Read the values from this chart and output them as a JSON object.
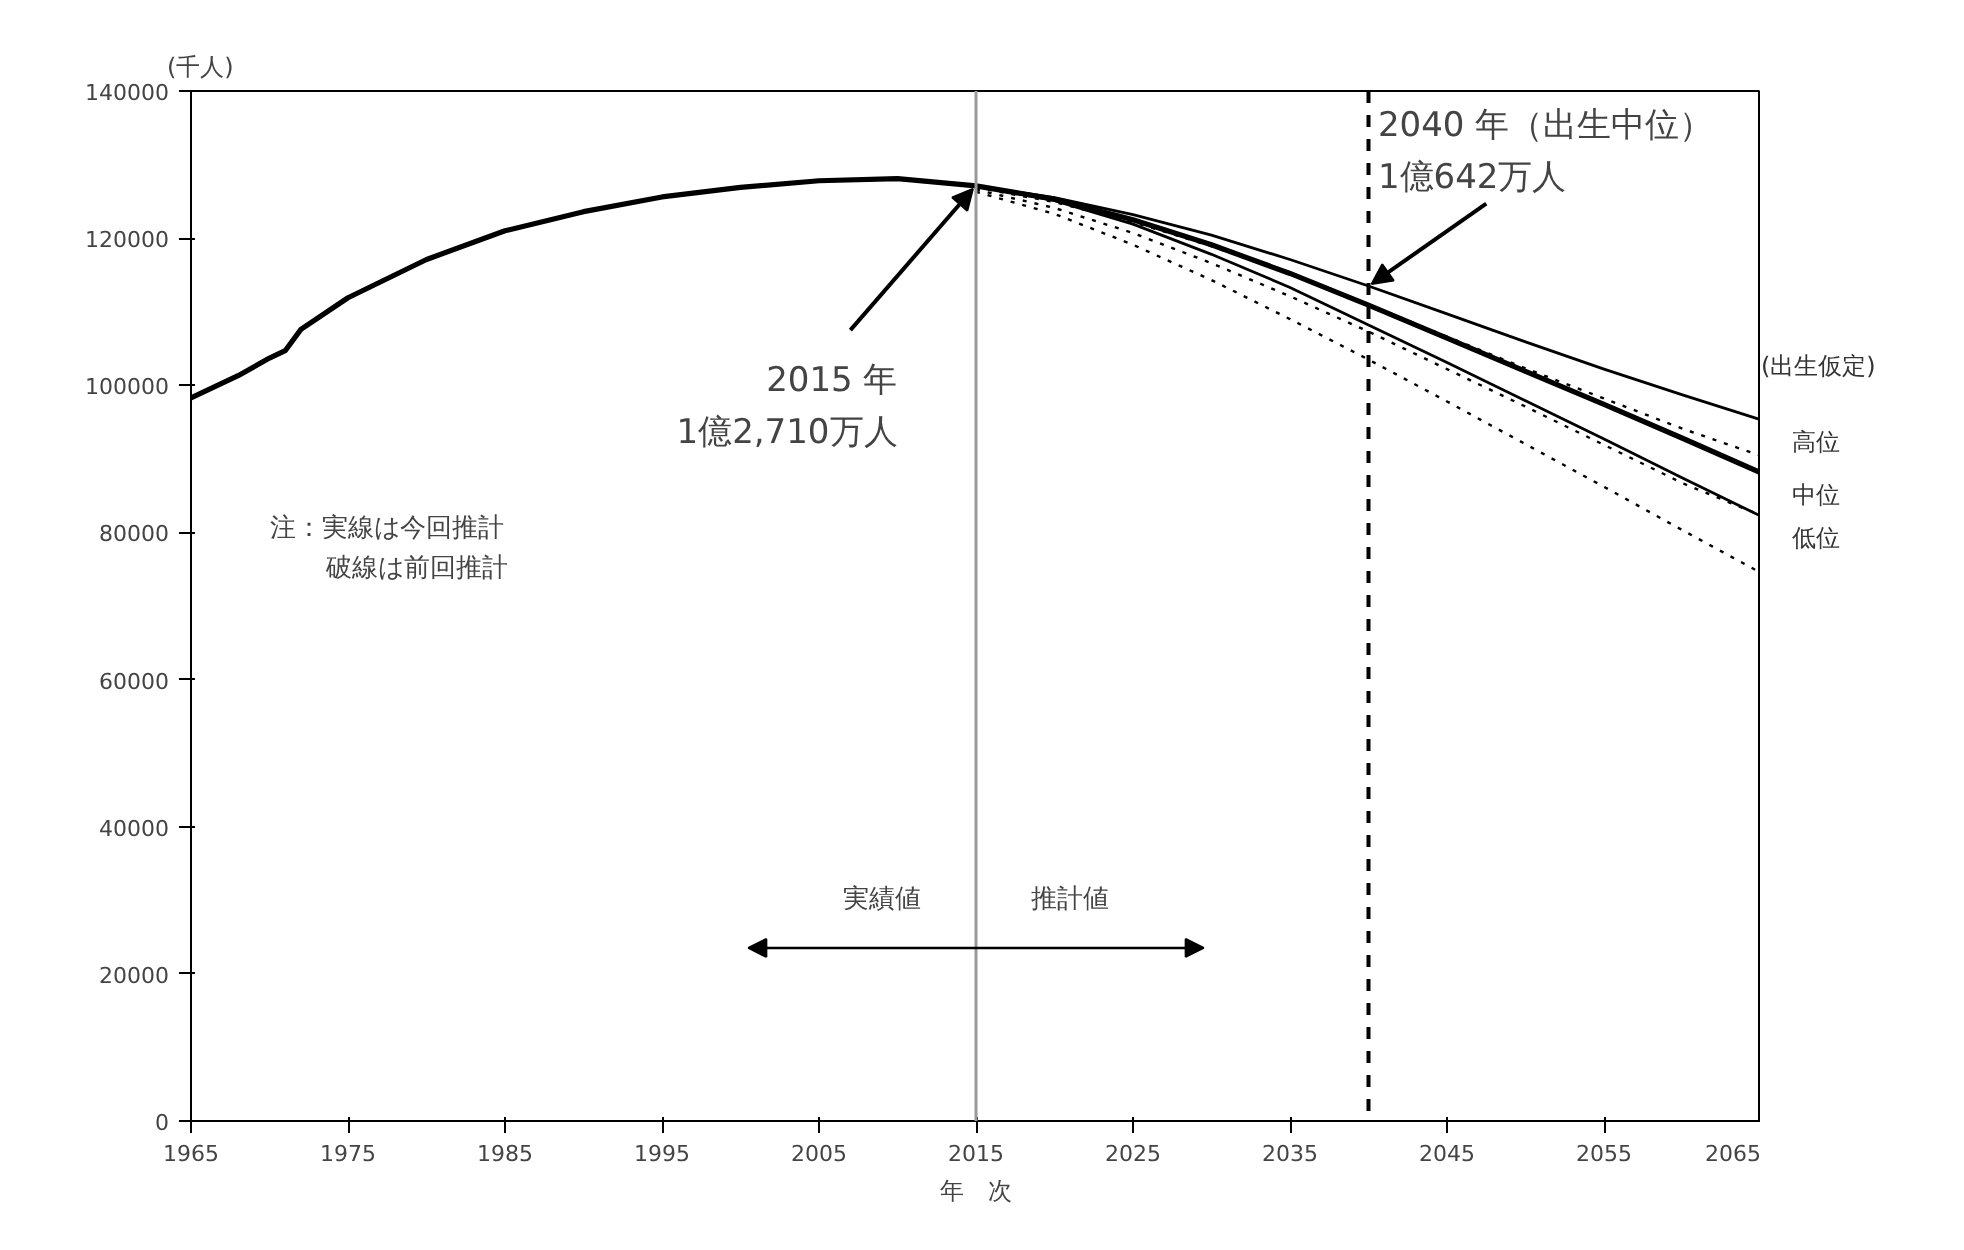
{
  "chart_data": {
    "type": "line",
    "xlabel": "年　次",
    "ylabel": "(千人)",
    "legend_title": "(出生仮定)",
    "xlim": [
      1965,
      2065
    ],
    "ylim": [
      0,
      140000
    ],
    "xticks": [
      1965,
      1975,
      1985,
      1995,
      2005,
      2015,
      2025,
      2035,
      2045,
      2055,
      2065
    ],
    "yticks": [
      0,
      20000,
      40000,
      60000,
      80000,
      100000,
      120000,
      140000
    ],
    "grid": false,
    "legend": false,
    "marker": "none",
    "series": [
      {
        "name": "中位",
        "color": "#000000",
        "line_style": "solid",
        "x": [
          1965,
          1968,
          1970,
          1971,
          1972,
          1975,
          1980,
          1985,
          1990,
          1995,
          2000,
          2005,
          2010,
          2015,
          2020,
          2025,
          2030,
          2035,
          2040,
          2045,
          2050,
          2055,
          2060,
          2065
        ],
        "values": [
          98300,
          101300,
          103700,
          104700,
          107600,
          111900,
          117100,
          121000,
          123600,
          125600,
          126900,
          127800,
          128100,
          127100,
          125300,
          122500,
          119100,
          115200,
          110900,
          106400,
          101900,
          97400,
          92800,
          88100
        ]
      },
      {
        "name": "高位",
        "color": "#000000",
        "line_style": "solid",
        "x": [
          2015,
          2020,
          2025,
          2030,
          2035,
          2040,
          2045,
          2050,
          2055,
          2060,
          2065
        ],
        "values": [
          127100,
          125500,
          123200,
          120400,
          117100,
          113500,
          109700,
          105900,
          102200,
          98700,
          95300
        ]
      },
      {
        "name": "低位",
        "color": "#000000",
        "line_style": "solid",
        "x": [
          2015,
          2020,
          2025,
          2030,
          2035,
          2040,
          2045,
          2050,
          2055,
          2060,
          2065
        ],
        "values": [
          127100,
          125100,
          121900,
          117800,
          113300,
          108200,
          103100,
          97900,
          92700,
          87400,
          82200
        ]
      },
      {
        "color": "#000000",
        "line_style": "dotted",
        "x": [
          2015,
          2020,
          2025,
          2030,
          2035,
          2040,
          2045,
          2050,
          2055,
          2060,
          2065
        ],
        "values": [
          126900,
          124900,
          122200,
          118900,
          115200,
          111000,
          106600,
          102300,
          98200,
          94100,
          90400
        ]
      },
      {
        "color": "#000000",
        "line_style": "dotted",
        "x": [
          2015,
          2020,
          2025,
          2030,
          2035,
          2040,
          2045,
          2050,
          2055,
          2060,
          2065
        ],
        "values": [
          126600,
          124100,
          120700,
          116600,
          112100,
          107300,
          102200,
          97100,
          91900,
          86700,
          82300
        ]
      },
      {
        "color": "#000000",
        "line_style": "dotted",
        "x": [
          2015,
          2020,
          2025,
          2030,
          2035,
          2040,
          2045,
          2050,
          2055,
          2060,
          2065
        ],
        "values": [
          126300,
          123300,
          119100,
          114300,
          109000,
          103500,
          97800,
          92000,
          86200,
          80300,
          74500
        ]
      }
    ],
    "ref_lines": [
      {
        "axis": "x",
        "value": 2015,
        "color": "#999999",
        "line_style": "solid"
      },
      {
        "axis": "x",
        "value": 2040,
        "color": "#000000",
        "line_style": "dashed"
      }
    ],
    "annotations": [
      {
        "text": "2015 年\n1億2,710万人",
        "x": 2015,
        "y": 127100
      },
      {
        "text": "2040 年（出生中位）\n1億642万人",
        "x": 2040,
        "y": 113500
      },
      "注：実線は今回推計",
      "破線は前回推計",
      "実績値",
      "推計値"
    ]
  }
}
